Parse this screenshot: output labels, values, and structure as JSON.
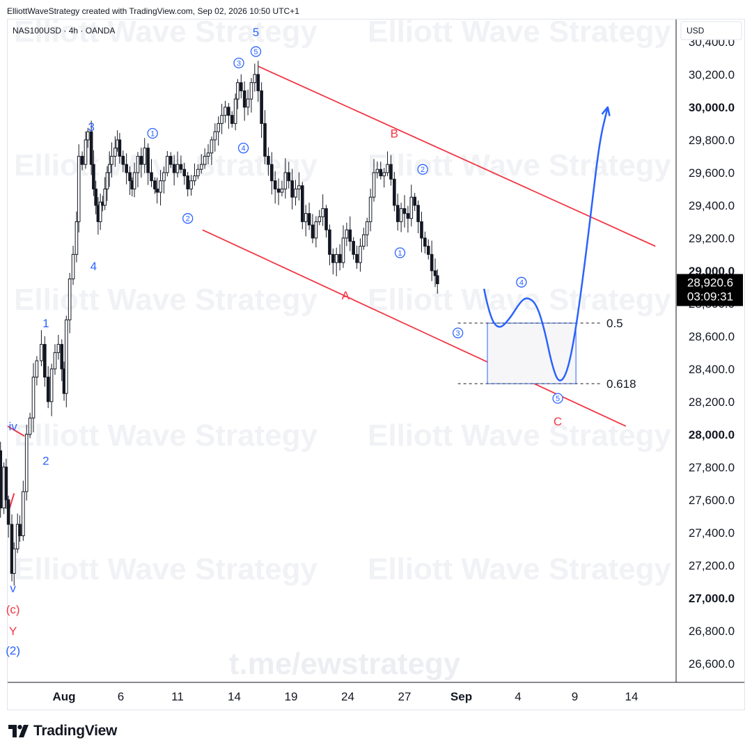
{
  "header": {
    "attribution": "ElliottWaveStrategy created with TradingView.com, Sep 02, 2026 10:50 UTC+1"
  },
  "symbol_info": "NAS100USD · 4h · OANDA",
  "currency_button": "USD",
  "watermark": {
    "repeat": "Elliott Wave Strategy",
    "link": "t.me/ewstrategy"
  },
  "footer": {
    "logo_text": "TradingView"
  },
  "price_badge": {
    "price": "28,920.6",
    "countdown": "03:09:31"
  },
  "colors": {
    "wave_blue": "#2962ff",
    "corrective_red": "#f23645",
    "candle": "#131722",
    "projection": "#2962ff",
    "badge_bg": "#000000"
  },
  "chart_data": {
    "type": "candlestick",
    "title": "",
    "xlabel": "",
    "ylabel": "",
    "currency": "USD",
    "ylim": [
      26450,
      30570
    ],
    "y_ticks": [
      {
        "value": 30400,
        "label": "30,400.0",
        "bold": false
      },
      {
        "value": 30200,
        "label": "30,200.0",
        "bold": false
      },
      {
        "value": 30000,
        "label": "30,000.0",
        "bold": true
      },
      {
        "value": 29800,
        "label": "29,800.0",
        "bold": false
      },
      {
        "value": 29600,
        "label": "29,600.0",
        "bold": false
      },
      {
        "value": 29400,
        "label": "29,400.0",
        "bold": false
      },
      {
        "value": 29200,
        "label": "29,200.0",
        "bold": false
      },
      {
        "value": 29000,
        "label": "29,000.0",
        "bold": true
      },
      {
        "value": 28800,
        "label": "28,800.0",
        "bold": false
      },
      {
        "value": 28600,
        "label": "28,600.0",
        "bold": false
      },
      {
        "value": 28400,
        "label": "28,400.0",
        "bold": false
      },
      {
        "value": 28200,
        "label": "28,200.0",
        "bold": false
      },
      {
        "value": 28000,
        "label": "28,000.0",
        "bold": true
      },
      {
        "value": 27800,
        "label": "27,800.0",
        "bold": false
      },
      {
        "value": 27600,
        "label": "27,600.0",
        "bold": false
      },
      {
        "value": 27400,
        "label": "27,400.0",
        "bold": false
      },
      {
        "value": 27200,
        "label": "27,200.0",
        "bold": false
      },
      {
        "value": 27000,
        "label": "27,000.0",
        "bold": true
      },
      {
        "value": 26800,
        "label": "26,800.0",
        "bold": false
      },
      {
        "value": 26600,
        "label": "26,600.0",
        "bold": false
      }
    ],
    "x_ticks": [
      {
        "label": "Aug",
        "day": 1,
        "bold": true
      },
      {
        "label": "6",
        "day": 6,
        "bold": false
      },
      {
        "label": "11",
        "day": 11,
        "bold": false
      },
      {
        "label": "14",
        "day": 16,
        "bold": false
      },
      {
        "label": "19",
        "day": 21,
        "bold": false
      },
      {
        "label": "24",
        "day": 26,
        "bold": false
      },
      {
        "label": "27",
        "day": 31,
        "bold": false
      },
      {
        "label": "Sep",
        "day": 36,
        "bold": true
      },
      {
        "label": "4",
        "day": 41,
        "bold": false
      },
      {
        "label": "9",
        "day": 46,
        "bold": false
      },
      {
        "label": "14",
        "day": 51,
        "bold": false
      }
    ],
    "last_price": 28920.6,
    "price_path": [
      [
        -4.8,
        27900
      ],
      [
        -4.6,
        27550
      ],
      [
        -4.3,
        27800
      ],
      [
        -4.1,
        27600
      ],
      [
        -3.9,
        27450
      ],
      [
        -3.6,
        27150
      ],
      [
        -3.4,
        27300
      ],
      [
        -3.1,
        27450
      ],
      [
        -2.9,
        27380
      ],
      [
        -2.6,
        27650
      ],
      [
        -2.3,
        28000
      ],
      [
        -2.0,
        28100
      ],
      [
        -1.7,
        28350
      ],
      [
        -1.4,
        28450
      ],
      [
        -1.0,
        28550
      ],
      [
        -0.7,
        28350
      ],
      [
        -0.4,
        28200
      ],
      [
        -0.1,
        28400
      ],
      [
        0.2,
        28500
      ],
      [
        0.5,
        28550
      ],
      [
        0.8,
        28400
      ],
      [
        1.0,
        28250
      ],
      [
        1.2,
        28700
      ],
      [
        1.5,
        28950
      ],
      [
        1.8,
        29100
      ],
      [
        2.1,
        29300
      ],
      [
        2.3,
        29700
      ],
      [
        2.6,
        29650
      ],
      [
        2.9,
        29800
      ],
      [
        3.1,
        29850
      ],
      [
        3.4,
        29650
      ],
      [
        3.6,
        29500
      ],
      [
        3.8,
        29400
      ],
      [
        4.0,
        29300
      ],
      [
        4.2,
        29420
      ],
      [
        4.4,
        29400
      ],
      [
        4.6,
        29500
      ],
      [
        4.8,
        29600
      ],
      [
        5.0,
        29650
      ],
      [
        5.2,
        29700
      ],
      [
        5.5,
        29750
      ],
      [
        5.7,
        29800
      ],
      [
        5.9,
        29700
      ],
      [
        6.2,
        29650
      ],
      [
        6.5,
        29600
      ],
      [
        6.8,
        29550
      ],
      [
        7.0,
        29500
      ],
      [
        7.2,
        29600
      ],
      [
        7.5,
        29700
      ],
      [
        7.8,
        29650
      ],
      [
        8.1,
        29750
      ],
      [
        8.4,
        29600
      ],
      [
        8.7,
        29550
      ],
      [
        9.0,
        29500
      ],
      [
        9.2,
        29480
      ],
      [
        9.5,
        29550
      ],
      [
        9.8,
        29600
      ],
      [
        10.1,
        29700
      ],
      [
        10.4,
        29650
      ],
      [
        10.7,
        29600
      ],
      [
        11.0,
        29650
      ],
      [
        11.3,
        29620
      ],
      [
        11.6,
        29580
      ],
      [
        11.9,
        29500
      ],
      [
        12.2,
        29550
      ],
      [
        12.5,
        29580
      ],
      [
        12.8,
        29620
      ],
      [
        13.1,
        29650
      ],
      [
        13.4,
        29700
      ],
      [
        13.7,
        29720
      ],
      [
        14.0,
        29800
      ],
      [
        14.3,
        29850
      ],
      [
        14.6,
        29900
      ],
      [
        14.9,
        29950
      ],
      [
        15.2,
        30000
      ],
      [
        15.5,
        29950
      ],
      [
        15.8,
        29900
      ],
      [
        16.1,
        30050
      ],
      [
        16.3,
        30150
      ],
      [
        16.6,
        30100
      ],
      [
        16.9,
        30000
      ],
      [
        17.2,
        30050
      ],
      [
        17.5,
        30150
      ],
      [
        17.8,
        30200
      ],
      [
        18.1,
        30100
      ],
      [
        18.4,
        29900
      ],
      [
        18.7,
        29700
      ],
      [
        19.0,
        29650
      ],
      [
        19.3,
        29550
      ],
      [
        19.6,
        29500
      ],
      [
        19.9,
        29480
      ],
      [
        20.2,
        29500
      ],
      [
        20.5,
        29600
      ],
      [
        20.8,
        29550
      ],
      [
        21.1,
        29450
      ],
      [
        21.4,
        29500
      ],
      [
        21.7,
        29520
      ],
      [
        22.0,
        29300
      ],
      [
        22.3,
        29350
      ],
      [
        22.6,
        29280
      ],
      [
        22.9,
        29200
      ],
      [
        23.2,
        29300
      ],
      [
        23.5,
        29330
      ],
      [
        23.8,
        29380
      ],
      [
        24.1,
        29250
      ],
      [
        24.4,
        29100
      ],
      [
        24.7,
        29050
      ],
      [
        25.0,
        29100
      ],
      [
        25.3,
        29050
      ],
      [
        25.6,
        29200
      ],
      [
        25.9,
        29250
      ],
      [
        26.2,
        29180
      ],
      [
        26.5,
        29100
      ],
      [
        26.8,
        29050
      ],
      [
        27.1,
        29150
      ],
      [
        27.4,
        29220
      ],
      [
        27.7,
        29300
      ],
      [
        28.0,
        29450
      ],
      [
        28.3,
        29600
      ],
      [
        28.6,
        29620
      ],
      [
        28.9,
        29580
      ],
      [
        29.2,
        29600
      ],
      [
        29.5,
        29650
      ],
      [
        29.8,
        29560
      ],
      [
        30.1,
        29400
      ],
      [
        30.4,
        29300
      ],
      [
        30.7,
        29380
      ],
      [
        31.0,
        29350
      ],
      [
        31.3,
        29320
      ],
      [
        31.6,
        29450
      ],
      [
        31.9,
        29400
      ],
      [
        32.2,
        29300
      ],
      [
        32.5,
        29200
      ],
      [
        32.8,
        29150
      ],
      [
        33.1,
        29100
      ],
      [
        33.4,
        29000
      ],
      [
        33.7,
        28970
      ],
      [
        33.9,
        28920.6
      ]
    ],
    "channel_lines": [
      {
        "name": "upper-channel",
        "from": [
          18.1,
          30250
        ],
        "to": [
          53.1,
          29150
        ]
      },
      {
        "name": "lower-channel",
        "from": [
          13.2,
          29250
        ],
        "to": [
          50.5,
          28050
        ]
      }
    ],
    "red_stub_lines": [
      {
        "from": [
          -5.0,
          28050
        ],
        "to": [
          -2.5,
          27990
        ]
      },
      {
        "from": [
          -5.0,
          27510
        ],
        "to": [
          -3.4,
          27640
        ]
      }
    ],
    "fib_levels": [
      {
        "label": "0.5",
        "value": 28680,
        "x_from": 35.7,
        "x_to": 48.3
      },
      {
        "label": "0.618",
        "value": 28310,
        "x_from": 35.7,
        "x_to": 48.3
      }
    ],
    "target_box": {
      "x_from": 38.3,
      "x_to": 46.1,
      "top": 28680,
      "bottom": 28310
    },
    "projection_path": [
      [
        38.0,
        28890
      ],
      [
        38.5,
        28720
      ],
      [
        39.3,
        28640
      ],
      [
        40.2,
        28700
      ],
      [
        41.2,
        28810
      ],
      [
        41.8,
        28840
      ],
      [
        42.6,
        28800
      ],
      [
        43.3,
        28650
      ],
      [
        44.0,
        28420
      ],
      [
        44.6,
        28310
      ],
      [
        45.3,
        28370
      ],
      [
        46.0,
        28600
      ],
      [
        46.8,
        29000
      ],
      [
        47.5,
        29400
      ],
      [
        48.2,
        29800
      ],
      [
        48.9,
        30000
      ]
    ],
    "wave_labels": [
      {
        "text": "5",
        "x": 17.9,
        "y": 30460,
        "color": "blue",
        "circled": false
      },
      {
        "text": "5",
        "x": 17.9,
        "y": 30340,
        "color": "blue",
        "circled": true
      },
      {
        "text": "3",
        "x": 16.4,
        "y": 30270,
        "color": "blue",
        "circled": true
      },
      {
        "text": "3",
        "x": 3.4,
        "y": 29880,
        "color": "blue",
        "circled": false
      },
      {
        "text": "1",
        "x": 8.8,
        "y": 29840,
        "color": "blue",
        "circled": true
      },
      {
        "text": "4",
        "x": 16.8,
        "y": 29750,
        "color": "blue",
        "circled": true
      },
      {
        "text": "2",
        "x": 11.9,
        "y": 29320,
        "color": "blue",
        "circled": true
      },
      {
        "text": "4",
        "x": 3.6,
        "y": 29030,
        "color": "blue",
        "circled": false
      },
      {
        "text": "1",
        "x": -0.6,
        "y": 28680,
        "color": "blue",
        "circled": false
      },
      {
        "text": "2",
        "x": -0.6,
        "y": 27840,
        "color": "blue",
        "circled": false
      },
      {
        "text": "iv",
        "x": -3.5,
        "y": 28050,
        "color": "blue",
        "circled": false
      },
      {
        "text": "v",
        "x": -3.5,
        "y": 27060,
        "color": "blue",
        "circled": false
      },
      {
        "text": "(c)",
        "x": -3.5,
        "y": 26930,
        "color": "red",
        "circled": false
      },
      {
        "text": "Y",
        "x": -3.5,
        "y": 26800,
        "color": "red",
        "circled": false
      },
      {
        "text": "(2)",
        "x": -3.5,
        "y": 26680,
        "color": "blue",
        "circled": false
      },
      {
        "text": "B",
        "x": 30.1,
        "y": 29840,
        "color": "red",
        "circled": false
      },
      {
        "text": "A",
        "x": 25.8,
        "y": 28850,
        "color": "red",
        "circled": false
      },
      {
        "text": "2",
        "x": 32.6,
        "y": 29620,
        "color": "blue",
        "circled": true
      },
      {
        "text": "1",
        "x": 30.6,
        "y": 29110,
        "color": "blue",
        "circled": true
      },
      {
        "text": "4",
        "x": 41.3,
        "y": 28930,
        "color": "blue",
        "circled": true
      },
      {
        "text": "3",
        "x": 35.7,
        "y": 28620,
        "color": "blue",
        "circled": true
      },
      {
        "text": "5",
        "x": 44.5,
        "y": 28220,
        "color": "blue",
        "circled": true
      },
      {
        "text": "C",
        "x": 44.5,
        "y": 28080,
        "color": "red",
        "circled": false
      }
    ]
  }
}
